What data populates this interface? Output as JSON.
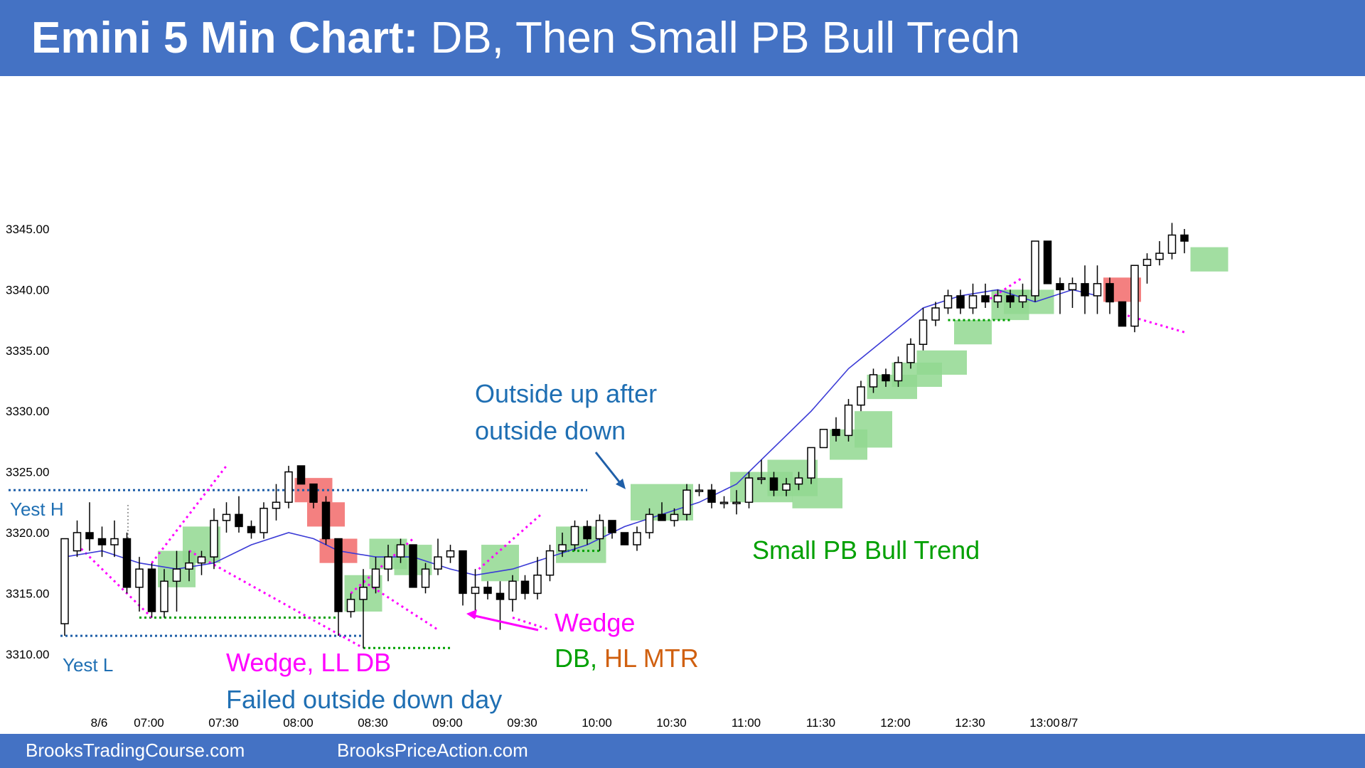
{
  "header": {
    "title_bold": "Emini 5 Min Chart:",
    "title_rest": " DB, Then Small PB Bull Tredn"
  },
  "footer": {
    "left": "BrooksTradingCourse.com",
    "right": "BrooksPriceAction.com"
  },
  "colors": {
    "banner": "#4472c4",
    "annotation_blue": "#1f6fb3",
    "magenta": "#ff00ff",
    "green": "#00a000",
    "orange": "#d06010",
    "highlight_green": "#92d890",
    "highlight_red": "#f26a6a",
    "ema": "#3b3bd6"
  },
  "chart_data": {
    "type": "candlestick",
    "title": "Emini 5 Min Chart: DB, Then Small PB Bull Tredn",
    "ylim": [
      3309,
      3356
    ],
    "y_ticks": [
      3310,
      3315,
      3320,
      3325,
      3330,
      3335,
      3340,
      3345
    ],
    "y_tick_labels": [
      "3310.00",
      "3315.00",
      "3320.00",
      "3325.00",
      "3330.00",
      "3335.00",
      "3340.00",
      "3345.00"
    ],
    "x_ticks": [
      {
        "bar": 3,
        "label": "8/6"
      },
      {
        "bar": 7,
        "label": "07:00"
      },
      {
        "bar": 13,
        "label": "07:30"
      },
      {
        "bar": 19,
        "label": "08:00"
      },
      {
        "bar": 25,
        "label": "08:30"
      },
      {
        "bar": 31,
        "label": "09:00"
      },
      {
        "bar": 37,
        "label": "09:30"
      },
      {
        "bar": 43,
        "label": "10:00"
      },
      {
        "bar": 49,
        "label": "10:30"
      },
      {
        "bar": 55,
        "label": "11:00"
      },
      {
        "bar": 61,
        "label": "11:30"
      },
      {
        "bar": 67,
        "label": "12:00"
      },
      {
        "bar": 73,
        "label": "12:30"
      },
      {
        "bar": 79,
        "label": "13:00"
      },
      {
        "bar": 81,
        "label": "8/7"
      }
    ],
    "candles": [
      [
        3312.5,
        3319.5,
        3311.5,
        3319.5
      ],
      [
        3318.5,
        3321,
        3318,
        3320
      ],
      [
        3320,
        3322.5,
        3318.5,
        3319.5
      ],
      [
        3319.5,
        3320.5,
        3318,
        3319
      ],
      [
        3319,
        3321,
        3318,
        3319.5
      ],
      [
        3319.5,
        3320,
        3315,
        3315.5
      ],
      [
        3315.5,
        3318,
        3313.5,
        3317
      ],
      [
        3317,
        3317.5,
        3313,
        3313.5
      ],
      [
        3313.5,
        3317,
        3313,
        3316
      ],
      [
        3316,
        3318.5,
        3313.5,
        3317
      ],
      [
        3317,
        3318.5,
        3316,
        3317.5
      ],
      [
        3317.5,
        3318.5,
        3316.5,
        3318
      ],
      [
        3318,
        3322,
        3317,
        3321
      ],
      [
        3321,
        3322.5,
        3320,
        3321.5
      ],
      [
        3321.5,
        3323,
        3320,
        3320.5
      ],
      [
        3320.5,
        3321,
        3319.5,
        3320
      ],
      [
        3320,
        3322.5,
        3319.5,
        3322
      ],
      [
        3322,
        3324,
        3321,
        3322.5
      ],
      [
        3322.5,
        3325.5,
        3322,
        3325
      ],
      [
        3325.5,
        3325.5,
        3324,
        3324
      ],
      [
        3324,
        3324,
        3322,
        3322.5
      ],
      [
        3322.5,
        3323,
        3319,
        3319.5
      ],
      [
        3319.5,
        3319.5,
        3311.5,
        3313.5
      ],
      [
        3313.5,
        3315,
        3313,
        3314.5
      ],
      [
        3314.5,
        3317,
        3310.5,
        3315.5
      ],
      [
        3315.5,
        3318,
        3315,
        3317
      ],
      [
        3317,
        3319,
        3316,
        3318
      ],
      [
        3318,
        3319.5,
        3317.5,
        3319
      ],
      [
        3319,
        3319,
        3315.5,
        3315.5
      ],
      [
        3315.5,
        3317.5,
        3315,
        3317
      ],
      [
        3317,
        3319.5,
        3316.5,
        3318
      ],
      [
        3318,
        3319,
        3317.5,
        3318.5
      ],
      [
        3318.5,
        3318.5,
        3314,
        3315
      ],
      [
        3315,
        3317,
        3313,
        3315.5
      ],
      [
        3315.5,
        3316,
        3314.5,
        3315
      ],
      [
        3315,
        3316,
        3312,
        3314.5
      ],
      [
        3314.5,
        3316.5,
        3313.5,
        3316
      ],
      [
        3316,
        3316.5,
        3314.5,
        3315
      ],
      [
        3315,
        3318,
        3314.5,
        3316.5
      ]
    ],
    "candles_2": [
      [
        3316.5,
        3319,
        3316,
        3318.5
      ],
      [
        3318.5,
        3320,
        3318,
        3319
      ],
      [
        3319,
        3321,
        3318.5,
        3320.5
      ],
      [
        3320.5,
        3321,
        3319,
        3319.5
      ],
      [
        3319.5,
        3321.5,
        3318.5,
        3321
      ],
      [
        3321,
        3321,
        3319.5,
        3320
      ],
      [
        3320,
        3320,
        3319,
        3319
      ],
      [
        3319,
        3320.5,
        3318.5,
        3320
      ],
      [
        3320,
        3322,
        3319.5,
        3321.5
      ],
      [
        3321.5,
        3322.5,
        3321,
        3321
      ],
      [
        3321,
        3322,
        3320.5,
        3321.5
      ],
      [
        3321.5,
        3324,
        3321,
        3323.5
      ],
      [
        3323.5,
        3324,
        3323,
        3323.5
      ],
      [
        3323.5,
        3324,
        3322,
        3322.5
      ],
      [
        3322.5,
        3323,
        3322,
        3322.5
      ],
      [
        3322.5,
        3323.5,
        3321.5,
        3322.5
      ],
      [
        3322.5,
        3325,
        3322,
        3324.5
      ],
      [
        3324.5,
        3326,
        3324,
        3324.5
      ],
      [
        3324.5,
        3325,
        3323,
        3323.5
      ],
      [
        3323.5,
        3324.5,
        3323,
        3324
      ],
      [
        3324,
        3325,
        3323.5,
        3324.5
      ],
      [
        3324.5,
        3327,
        3324,
        3327
      ],
      [
        3327,
        3328.5,
        3327,
        3328.5
      ],
      [
        3328.5,
        3329.5,
        3327.5,
        3328
      ],
      [
        3328,
        3331,
        3327.5,
        3330.5
      ],
      [
        3330.5,
        3332.5,
        3330,
        3332
      ],
      [
        3332,
        3333.5,
        3331.5,
        3333
      ],
      [
        3333,
        3333.5,
        3332,
        3332.5
      ],
      [
        3332.5,
        3334.5,
        3332,
        3334
      ],
      [
        3334,
        3336,
        3333.5,
        3335.5
      ],
      [
        3335.5,
        3338.5,
        3335,
        3337.5
      ],
      [
        3337.5,
        3339,
        3337,
        3338.5
      ],
      [
        3338.5,
        3340,
        3338,
        3339.5
      ],
      [
        3339.5,
        3340,
        3338,
        3338.5
      ],
      [
        3338.5,
        3340.5,
        3338,
        3339.5
      ],
      [
        3339.5,
        3340.5,
        3338.5,
        3339
      ],
      [
        3339,
        3340,
        3338.5,
        3339.5
      ],
      [
        3339.5,
        3340,
        3338.5,
        3339
      ],
      [
        3339,
        3340.5,
        3338.5,
        3339.5
      ],
      [
        3339.5,
        3344,
        3339,
        3344
      ],
      [
        3344,
        3344,
        3340.5,
        3340.5
      ],
      [
        3340.5,
        3341,
        3338,
        3340
      ],
      [
        3340,
        3341,
        3338.5,
        3340.5
      ],
      [
        3340.5,
        3342,
        3338,
        3339.5
      ],
      [
        3339.5,
        3342,
        3338,
        3340.5
      ],
      [
        3340.5,
        3341,
        3338,
        3339
      ]
    ],
    "candles_3": [
      [
        3339,
        3339,
        3337,
        3337
      ],
      [
        3337,
        3342,
        3336.5,
        3342
      ],
      [
        3342,
        3343,
        3340.5,
        3342.5
      ],
      [
        3342.5,
        3344,
        3342,
        3343
      ],
      [
        3343,
        3345.5,
        3342.5,
        3344.5
      ],
      [
        3344.5,
        3345,
        3343,
        3344
      ]
    ],
    "ema_20": [
      [
        0,
        3318
      ],
      [
        3,
        3318.5
      ],
      [
        6,
        3317.5
      ],
      [
        9,
        3317
      ],
      [
        12,
        3317.5
      ],
      [
        15,
        3319
      ],
      [
        18,
        3320
      ],
      [
        20,
        3319.5
      ],
      [
        22,
        3318.5
      ],
      [
        25,
        3318
      ],
      [
        28,
        3318
      ],
      [
        31,
        3317
      ],
      [
        33,
        3316.5
      ],
      [
        36,
        3317
      ],
      [
        39,
        3318
      ],
      [
        42,
        3319
      ],
      [
        45,
        3320.5
      ],
      [
        48,
        3321.5
      ],
      [
        51,
        3322.5
      ],
      [
        54,
        3324
      ],
      [
        57,
        3327
      ],
      [
        60,
        3330
      ],
      [
        63,
        3333.5
      ],
      [
        66,
        3336
      ],
      [
        69,
        3338.5
      ],
      [
        72,
        3339.5
      ],
      [
        75,
        3340
      ],
      [
        78,
        3339
      ],
      [
        81,
        3340
      ],
      [
        83,
        3339.5
      ]
    ],
    "levels": {
      "yesterday_high": 3323.5,
      "yesterday_low": 3311.5
    }
  },
  "annotations": {
    "yest_h": "Yest H",
    "yest_l": "Yest L",
    "outside_up": "Outside up after",
    "outside_down": "outside down",
    "small_pb": "Small PB Bull Trend",
    "wedge_right": "Wedge",
    "db_prefix": "DB,",
    "hl_mtr": "HL MTR",
    "wedge_ll_db": "Wedge, LL DB",
    "failed_outside": "Failed outside down day"
  }
}
